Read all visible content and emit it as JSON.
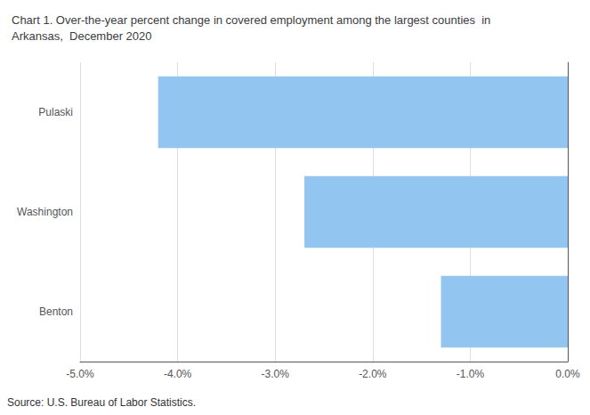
{
  "chart_data": {
    "type": "bar",
    "orientation": "horizontal",
    "title": "Chart 1. Over-the-year percent change in covered employment among the largest counties  in\nArkansas,  December 2020",
    "annotations": [
      "Source: U.S. Bureau of Labor Statistics."
    ],
    "categories": [
      "Benton",
      "Washington",
      "Pulaski"
    ],
    "values": [
      -1.3,
      -2.7,
      -4.2
    ],
    "color": "#92C5F0",
    "xlim": [
      -5.0,
      0.0
    ],
    "xticks": [
      {
        "value": -5.0,
        "label": "-5.0%"
      },
      {
        "value": -4.0,
        "label": "-4.0%"
      },
      {
        "value": -3.0,
        "label": "-3.0%"
      },
      {
        "value": -2.0,
        "label": "-2.0%"
      },
      {
        "value": -1.0,
        "label": "-1.0%"
      },
      {
        "value": 0.0,
        "label": "0.0%"
      }
    ],
    "grid": true
  }
}
